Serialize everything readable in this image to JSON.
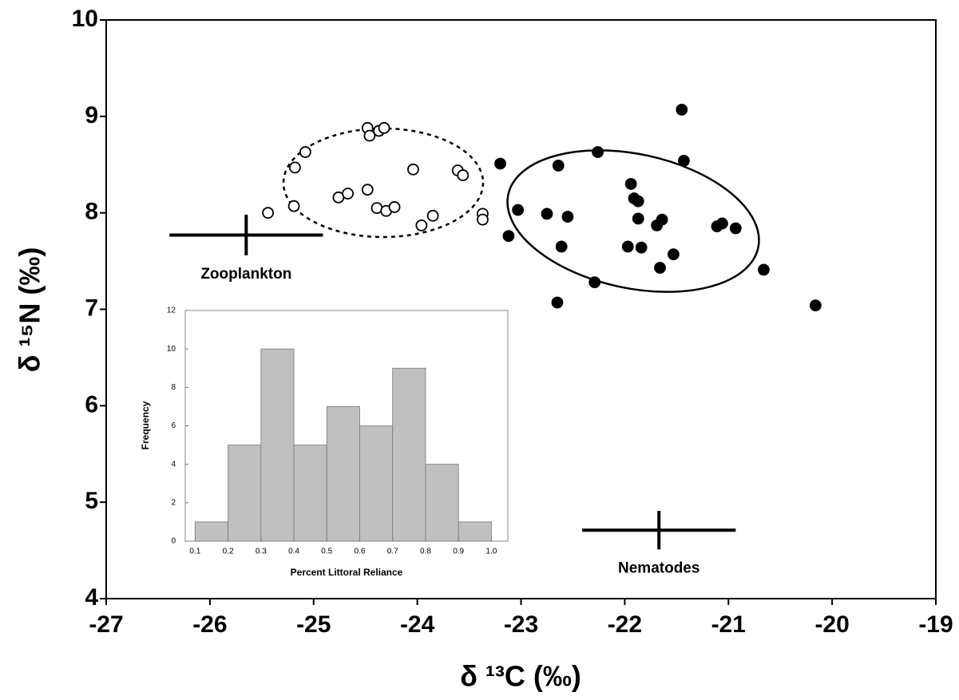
{
  "chart_data": [
    {
      "type": "scatter",
      "x_label": "δ ¹³C (‰)",
      "y_label": "δ ¹⁵N (‰)",
      "xlim": [
        -27,
        -19
      ],
      "ylim": [
        4,
        10
      ],
      "xticks": [
        -27,
        -26,
        -25,
        -24,
        -23,
        -22,
        -21,
        -20,
        -19
      ],
      "yticks": [
        4,
        5,
        6,
        7,
        8,
        9,
        10
      ],
      "series": [
        {
          "marker": "open",
          "color": "#000000",
          "x": [
            -25.44,
            -25.19,
            -25.18,
            -25.08,
            -24.76,
            -24.67,
            -24.48,
            -24.48,
            -24.46,
            -24.37,
            -24.32,
            -24.39,
            -24.3,
            -24.22,
            -24.04,
            -23.96,
            -23.85,
            -23.61,
            -23.56,
            -23.37,
            -23.37
          ],
          "values": [
            8.0,
            8.07,
            8.47,
            8.63,
            8.16,
            8.2,
            8.24,
            8.88,
            8.8,
            8.85,
            8.88,
            8.05,
            8.02,
            8.06,
            8.45,
            7.87,
            7.97,
            8.44,
            8.39,
            7.99,
            7.93
          ]
        },
        {
          "marker": "filled",
          "color": "#000000",
          "x": [
            -23.2,
            -23.12,
            -23.03,
            -22.75,
            -22.65,
            -22.64,
            -22.61,
            -22.55,
            -22.29,
            -22.26,
            -21.94,
            -21.97,
            -21.91,
            -21.87,
            -21.87,
            -21.84,
            -21.69,
            -21.64,
            -21.66,
            -21.53,
            -21.45,
            -21.43,
            -21.11,
            -21.06,
            -20.93,
            -20.66,
            -20.16
          ],
          "values": [
            8.51,
            7.76,
            8.03,
            7.99,
            7.07,
            8.49,
            7.65,
            7.96,
            7.28,
            8.63,
            8.3,
            7.65,
            8.15,
            8.12,
            7.94,
            7.64,
            7.87,
            7.93,
            7.43,
            7.57,
            9.07,
            8.54,
            7.86,
            7.89,
            7.84,
            7.41,
            7.04
          ]
        }
      ],
      "error_bars": [
        {
          "label": "Zooplankton",
          "x": -25.65,
          "y": 7.77,
          "xerr": 0.74,
          "yerr": 0.21
        },
        {
          "label": "Nematodes",
          "x": -21.67,
          "y": 4.71,
          "xerr": 0.74,
          "yerr": 0.2
        }
      ]
    },
    {
      "type": "histogram",
      "x_label": "Percent Littoral Reliance",
      "y_label": "Frequency",
      "bins": [
        0.1,
        0.2,
        0.3,
        0.4,
        0.5,
        0.6,
        0.7,
        0.8,
        0.9,
        1.0
      ],
      "values": [
        1,
        5,
        10,
        5,
        7,
        6,
        9,
        4,
        1
      ],
      "color": "#c0c0c0",
      "xlim": [
        0.07,
        1.05
      ],
      "ylim": [
        0,
        12
      ],
      "xticks": [
        0.1,
        0.2,
        0.3,
        0.4,
        0.5,
        0.6,
        0.7,
        0.8,
        0.9,
        {
          "value": 1,
          "label": "1.0"
        }
      ],
      "yticks": [
        0,
        2,
        4,
        6,
        8,
        10,
        12
      ]
    }
  ]
}
